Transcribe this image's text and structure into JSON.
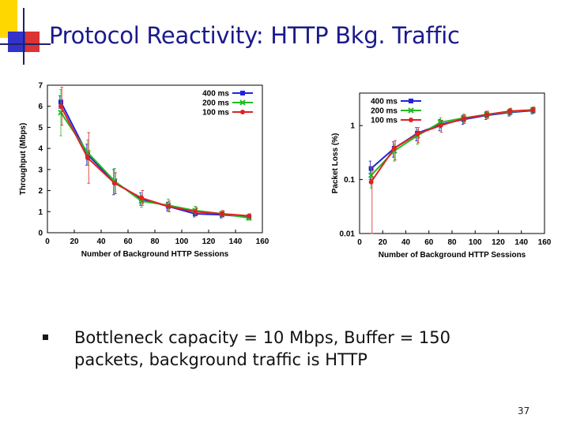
{
  "slide": {
    "title": "Protocol Reactivity: HTTP Bkg. Traffic",
    "bullet": "Bottleneck capacity = 10 Mbps, Buffer = 150 packets, background traffic is HTTP",
    "page_number": "37",
    "colors": {
      "title": "#1a1a8c",
      "accent_yellow": "#ffd700",
      "accent_blue": "#3333cc",
      "accent_red": "#cc0000"
    }
  },
  "chart_data": [
    {
      "type": "line",
      "title": "",
      "xlabel": "Number of Background HTTP Sessions",
      "ylabel": "Throughput (Mbps)",
      "xlim": [
        0,
        160
      ],
      "ylim": [
        0,
        7
      ],
      "xticks": [
        0,
        20,
        40,
        60,
        80,
        100,
        120,
        140,
        160
      ],
      "yticks": [
        0,
        1,
        2,
        3,
        4,
        5,
        6,
        7
      ],
      "log_y": false,
      "legend_position": "top-right",
      "x": [
        10,
        30,
        50,
        70,
        90,
        110,
        130,
        150
      ],
      "series": [
        {
          "name": "400 ms",
          "color": "#2222dd",
          "marker": "square",
          "values": [
            6.2,
            3.7,
            2.4,
            1.6,
            1.25,
            0.9,
            0.85,
            0.75
          ],
          "err": [
            0.3,
            0.5,
            0.6,
            0.3,
            0.2,
            0.15,
            0.15,
            0.1
          ]
        },
        {
          "name": "200 ms",
          "color": "#22bb22",
          "marker": "x",
          "values": [
            5.7,
            3.8,
            2.45,
            1.5,
            1.3,
            1.05,
            0.9,
            0.7
          ],
          "err": [
            1.1,
            0.6,
            0.6,
            0.3,
            0.3,
            0.2,
            0.15,
            0.1
          ]
        },
        {
          "name": "100 ms",
          "color": "#dd2222",
          "marker": "circle",
          "values": [
            6.0,
            3.55,
            2.35,
            1.65,
            1.25,
            1.0,
            0.9,
            0.8
          ],
          "err": [
            0.9,
            1.2,
            0.5,
            0.35,
            0.25,
            0.2,
            0.15,
            0.1
          ]
        }
      ]
    },
    {
      "type": "line",
      "title": "",
      "xlabel": "Number of Background HTTP Sessions",
      "ylabel": "Packet Loss (%)",
      "xlim": [
        0,
        160
      ],
      "ylim": [
        0.01,
        4
      ],
      "xticks": [
        0,
        20,
        40,
        60,
        80,
        100,
        120,
        140,
        160
      ],
      "yticks": [
        0.01,
        0.1,
        1
      ],
      "ytick_labels": [
        "0.01",
        "0.1",
        "1"
      ],
      "log_y": true,
      "legend_position": "top-left",
      "x": [
        10,
        30,
        50,
        70,
        90,
        110,
        130,
        150
      ],
      "series": [
        {
          "name": "400 ms",
          "color": "#2222dd",
          "marker": "square",
          "values": [
            0.16,
            0.38,
            0.72,
            1.05,
            1.3,
            1.55,
            1.75,
            1.9
          ],
          "err": [
            0.06,
            0.12,
            0.2,
            0.25,
            0.25,
            0.25,
            0.25,
            0.25
          ]
        },
        {
          "name": "200 ms",
          "color": "#22bb22",
          "marker": "x",
          "values": [
            0.12,
            0.34,
            0.65,
            1.15,
            1.38,
            1.6,
            1.8,
            1.95
          ],
          "err": [
            0.05,
            0.12,
            0.2,
            0.25,
            0.25,
            0.25,
            0.25,
            0.25
          ]
        },
        {
          "name": "100 ms",
          "color": "#dd2222",
          "marker": "circle",
          "values": [
            0.09,
            0.38,
            0.7,
            1.0,
            1.35,
            1.6,
            1.85,
            1.95
          ],
          "err": [
            0.08,
            0.15,
            0.22,
            0.25,
            0.25,
            0.25,
            0.25,
            0.25
          ]
        }
      ]
    }
  ]
}
